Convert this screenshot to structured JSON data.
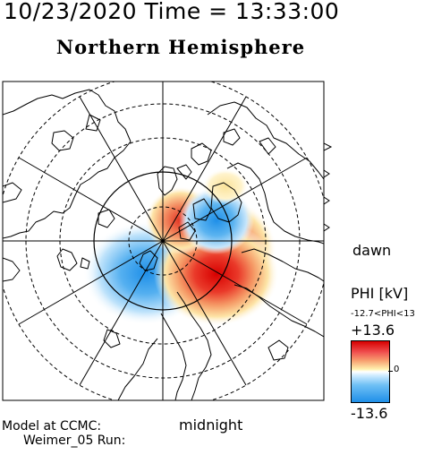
{
  "header": {
    "timestamp": "10/23/2020 Time = 13:33:00",
    "title": "Northern Hemisphere"
  },
  "map": {
    "dawn_label": "dawn",
    "midnight_label": "midnight",
    "projection": "north polar stereographic, dashed circles every 10 degrees latitude, meridians every 30 degrees",
    "colors": {
      "positive_max": "#d70000",
      "negative_max": "#1f8fe8",
      "land_outline": "#000000"
    }
  },
  "colorbar": {
    "quantity_label": "PHI [kV]",
    "range_text": "-12.7<PHI<13",
    "max_label": "+13.6",
    "zero_label": "0",
    "min_label": "-13.6"
  },
  "footer": {
    "model_text": "Model at CCMC:",
    "run_text": "Weimer_05 Run:"
  }
}
